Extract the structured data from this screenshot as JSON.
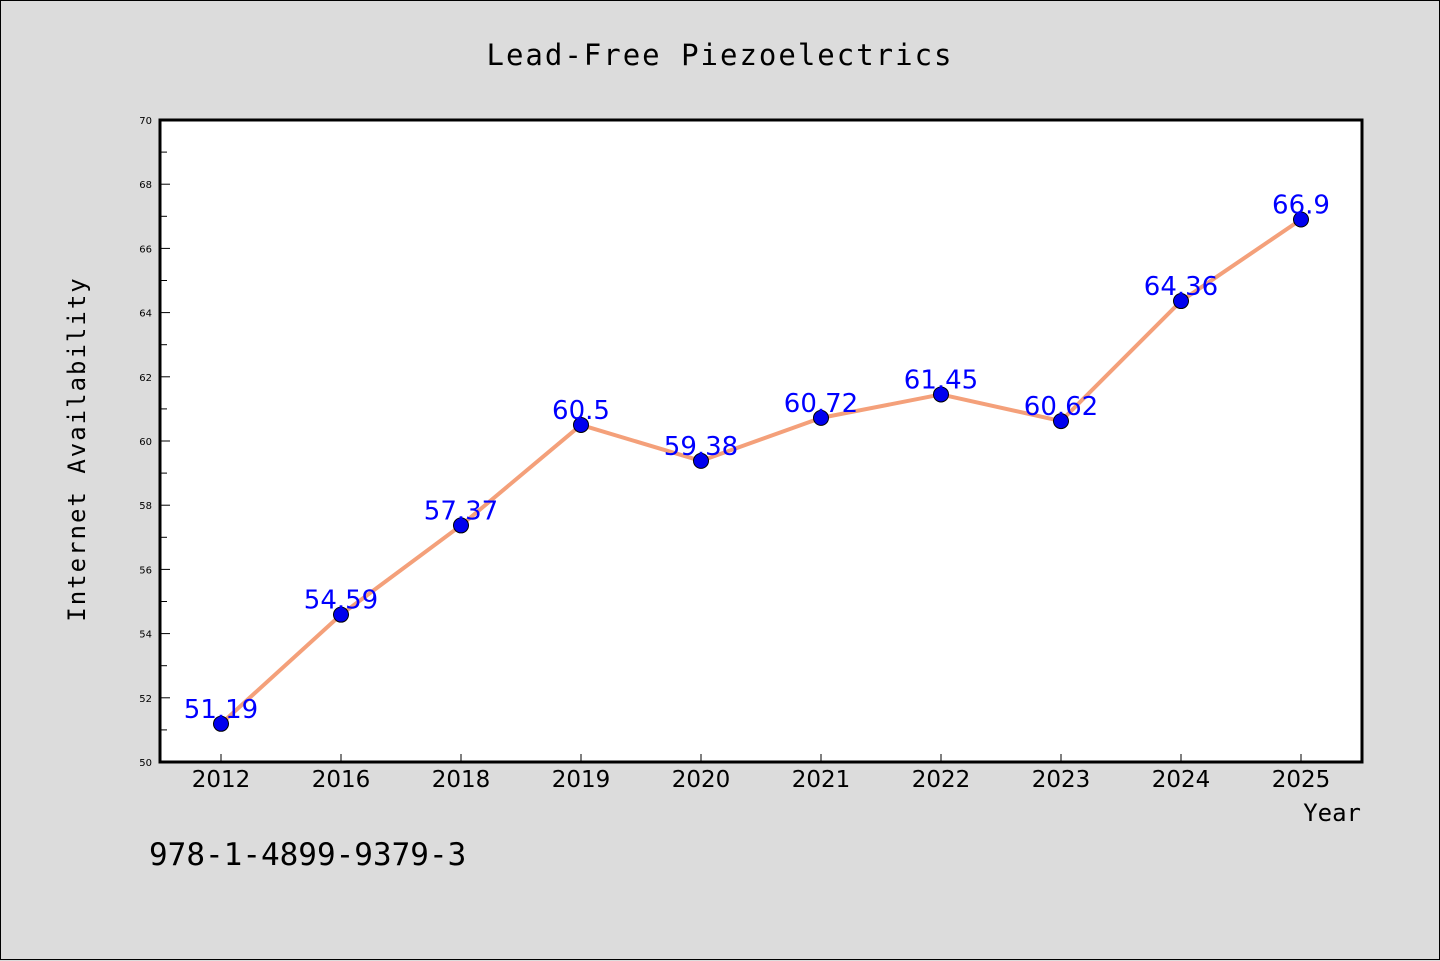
{
  "chart_data": {
    "type": "line",
    "title": "Lead-Free Piezoelectrics",
    "xlabel": "Year",
    "ylabel": "Internet Availability",
    "categories": [
      "2012",
      "2016",
      "2018",
      "2019",
      "2020",
      "2021",
      "2022",
      "2023",
      "2024",
      "2025"
    ],
    "series": [
      {
        "values": [
          51.19,
          54.59,
          57.37,
          60.5,
          59.38,
          60.72,
          61.45,
          60.62,
          64.36,
          66.9
        ],
        "labels": [
          "51.19",
          "54.59",
          "57.37",
          "60.5",
          "59.38",
          "60.72",
          "61.45",
          "60.62",
          "64.36",
          "66.9"
        ],
        "line_color": "#f4a07a",
        "marker_color": "#0000ee"
      }
    ],
    "ylim": [
      50,
      70
    ],
    "yticks": [
      50,
      52,
      54,
      56,
      58,
      60,
      62,
      64,
      66,
      68,
      70
    ],
    "grid": false,
    "legend": "none"
  },
  "annotation": "978-1-4899-9379-3",
  "colors": {
    "background": "#dcdcdc",
    "plot_area": "#ffffff",
    "data_label": "#0000ff"
  }
}
